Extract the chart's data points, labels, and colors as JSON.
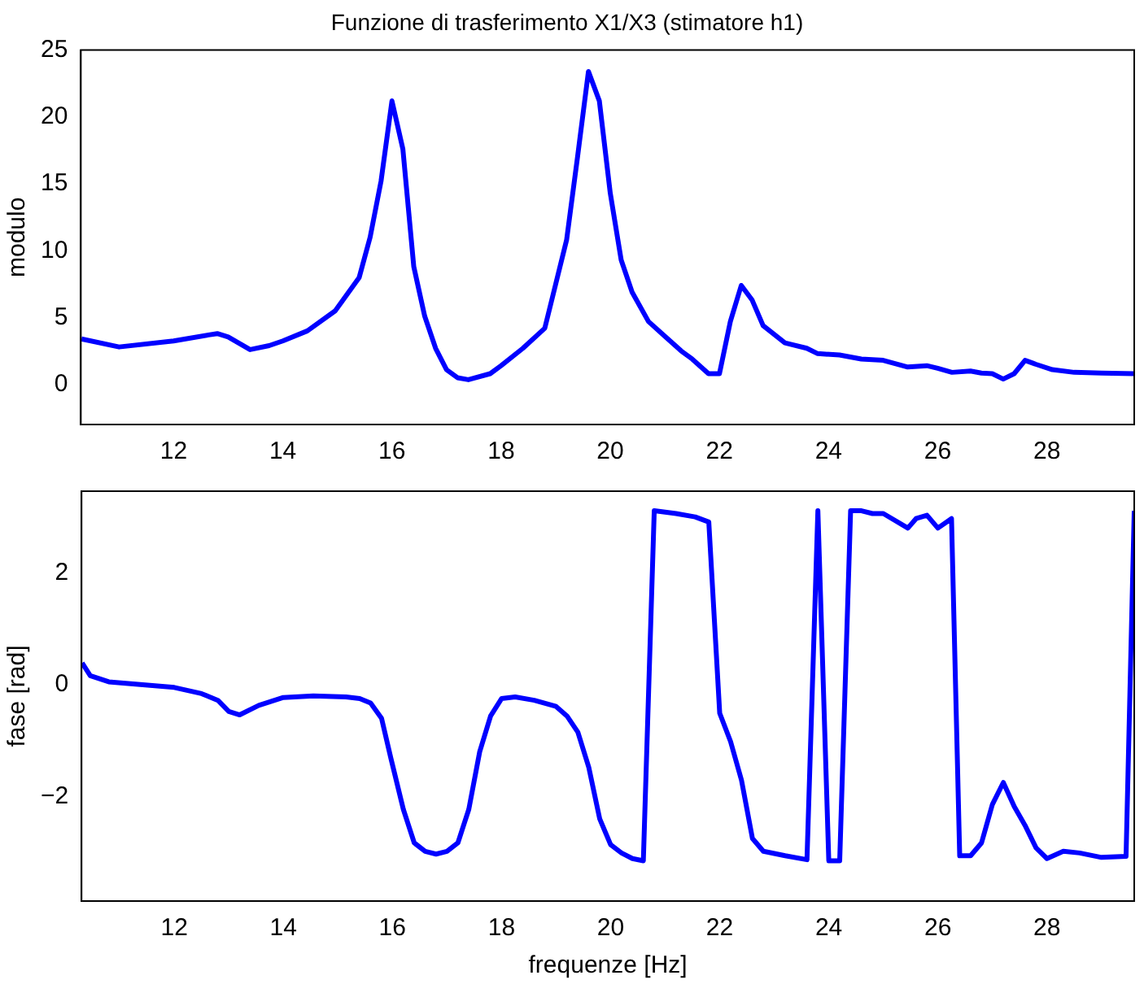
{
  "chart_data": [
    {
      "type": "line",
      "title": "Funzione di trasferimento X1/X3 (stimatore h1)",
      "ylabel": "modulo",
      "color": "#0000ff",
      "x": [
        10.31,
        11.0,
        12.0,
        12.64,
        12.8,
        13.0,
        13.4,
        13.75,
        14.0,
        14.45,
        14.96,
        15.4,
        15.6,
        15.8,
        16.0,
        16.2,
        16.4,
        16.6,
        16.8,
        17.0,
        17.2,
        17.4,
        17.8,
        18.0,
        18.4,
        18.8,
        19.0,
        19.2,
        19.4,
        19.6,
        19.8,
        20.0,
        20.2,
        20.4,
        20.7,
        21.0,
        21.3,
        21.5,
        21.8,
        22.0,
        22.2,
        22.4,
        22.6,
        22.8,
        23.2,
        23.6,
        23.8,
        24.2,
        24.6,
        25.0,
        25.45,
        25.8,
        26.0,
        26.26,
        26.6,
        26.8,
        27.0,
        27.2,
        27.4,
        27.6,
        27.8,
        28.1,
        28.5,
        29.0,
        29.6
      ],
      "values": [
        3.4,
        2.8,
        3.25,
        3.7,
        3.8,
        3.55,
        2.6,
        2.9,
        3.25,
        4.0,
        5.5,
        8.0,
        11.0,
        15.2,
        21.2,
        17.6,
        8.8,
        5.1,
        2.7,
        1.1,
        0.5,
        0.35,
        0.8,
        1.4,
        2.7,
        4.2,
        7.5,
        10.8,
        17.0,
        23.4,
        21.2,
        14.3,
        9.3,
        6.9,
        4.7,
        3.6,
        2.5,
        1.9,
        0.8,
        0.8,
        4.7,
        7.4,
        6.3,
        4.4,
        3.1,
        2.7,
        2.3,
        2.2,
        1.9,
        1.8,
        1.3,
        1.4,
        1.2,
        0.9,
        1.0,
        0.85,
        0.8,
        0.4,
        0.8,
        1.8,
        1.5,
        1.1,
        0.9,
        0.85,
        0.8
      ],
      "xlim": [
        10.3,
        29.6
      ],
      "ylim": [
        -3,
        25
      ],
      "xticks": [
        12,
        14,
        16,
        18,
        20,
        22,
        24,
        26,
        28
      ],
      "yticks": [
        0,
        5,
        10,
        15,
        20,
        25
      ]
    },
    {
      "type": "line",
      "xlabel": "frequenze [Hz]",
      "ylabel": "fase [rad]",
      "color": "#0000ff",
      "x": [
        10.31,
        10.46,
        10.8,
        12.0,
        12.5,
        12.8,
        13.0,
        13.2,
        13.55,
        14.0,
        14.55,
        15.15,
        15.4,
        15.6,
        15.8,
        15.97,
        16.2,
        16.4,
        16.6,
        16.8,
        17.0,
        17.2,
        17.4,
        17.6,
        17.8,
        18.0,
        18.25,
        18.6,
        19.0,
        19.2,
        19.4,
        19.6,
        19.8,
        20.0,
        20.2,
        20.4,
        20.6,
        20.8,
        21.2,
        21.55,
        21.8,
        22.0,
        22.2,
        22.4,
        22.6,
        22.8,
        23.2,
        23.6,
        23.8,
        24.0,
        24.2,
        24.4,
        24.6,
        24.8,
        25.0,
        25.45,
        25.6,
        25.8,
        26.0,
        26.25,
        26.4,
        26.6,
        26.8,
        27.0,
        27.2,
        27.4,
        27.6,
        27.8,
        28.0,
        28.3,
        28.6,
        29.0,
        29.45,
        29.6
      ],
      "values": [
        0.39,
        0.16,
        0.05,
        -0.05,
        -0.16,
        -0.28,
        -0.48,
        -0.54,
        -0.37,
        -0.23,
        -0.2,
        -0.22,
        -0.25,
        -0.33,
        -0.6,
        -1.31,
        -2.23,
        -2.83,
        -2.98,
        -3.03,
        -2.98,
        -2.83,
        -2.23,
        -1.2,
        -0.56,
        -0.25,
        -0.22,
        -0.28,
        -0.39,
        -0.56,
        -0.85,
        -1.48,
        -2.4,
        -2.86,
        -3.01,
        -3.11,
        -3.15,
        3.11,
        3.06,
        3.0,
        2.91,
        -0.51,
        -1.02,
        -1.71,
        -2.75,
        -2.98,
        -3.06,
        -3.13,
        3.11,
        -3.15,
        -3.15,
        3.11,
        3.11,
        3.06,
        3.06,
        2.8,
        2.97,
        3.03,
        2.8,
        2.97,
        -3.06,
        -3.06,
        -2.83,
        -2.14,
        -1.75,
        -2.18,
        -2.52,
        -2.92,
        -3.11,
        -2.98,
        -3.01,
        -3.09,
        -3.07,
        3.11
      ],
      "xlim": [
        10.3,
        29.6
      ],
      "ylim": [
        -3.87,
        3.46
      ],
      "xticks": [
        12,
        14,
        16,
        18,
        20,
        22,
        24,
        26,
        28
      ],
      "yticks": [
        -2,
        0,
        2
      ]
    }
  ]
}
